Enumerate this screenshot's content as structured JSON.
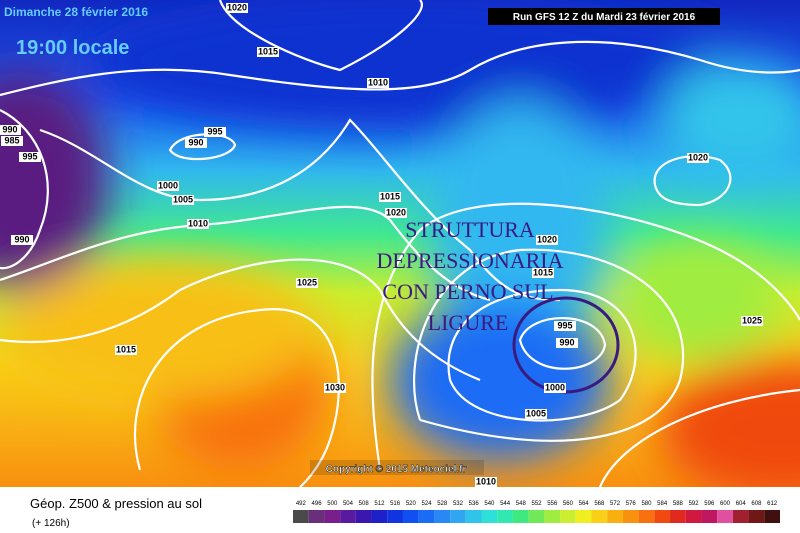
{
  "header": {
    "date": "Dimanche 28 février 2016",
    "time": "19:00 locale",
    "run": "Run GFS 12 Z du Mardi 23 février 2016"
  },
  "annotation": {
    "lines": [
      "STRUTTURA",
      "DEPRESSIONARIA",
      "CON PERNO SUL",
      "LIGURE"
    ]
  },
  "copyright": "Copyright © 2015 Meteociel.fr",
  "isobar_labels": [
    1020,
    1015,
    1010,
    990,
    985,
    995,
    995,
    990,
    1000,
    1005,
    1010,
    990,
    1015,
    1020,
    1025,
    1015,
    1030,
    1020,
    1015,
    995,
    990,
    1000,
    1005,
    1010,
    1020,
    1025
  ],
  "footer": {
    "title": "Géop. Z500 & pression au sol",
    "lead": "(+ 126h)"
  },
  "scale": {
    "values": [
      492,
      496,
      500,
      504,
      508,
      512,
      516,
      520,
      524,
      528,
      532,
      536,
      540,
      544,
      548,
      552,
      556,
      560,
      564,
      568,
      572,
      576,
      580,
      584,
      588,
      592,
      596,
      600,
      604,
      608,
      612
    ],
    "colors": [
      "#4a4a4a",
      "#6a2f7a",
      "#7a1e8c",
      "#5a1aa0",
      "#3a18b0",
      "#1e20c8",
      "#1034e0",
      "#1050f0",
      "#1a6cf5",
      "#2a88f5",
      "#30a6f0",
      "#30c4ea",
      "#2ee0d8",
      "#30e8b0",
      "#40e880",
      "#70e858",
      "#a0ec40",
      "#ccee30",
      "#f0ee20",
      "#f8d018",
      "#f8b010",
      "#f89010",
      "#f87010",
      "#f04a10",
      "#e02a20",
      "#d01840",
      "#c01860",
      "#e050a0",
      "#a02030",
      "#701818",
      "#401010"
    ]
  }
}
